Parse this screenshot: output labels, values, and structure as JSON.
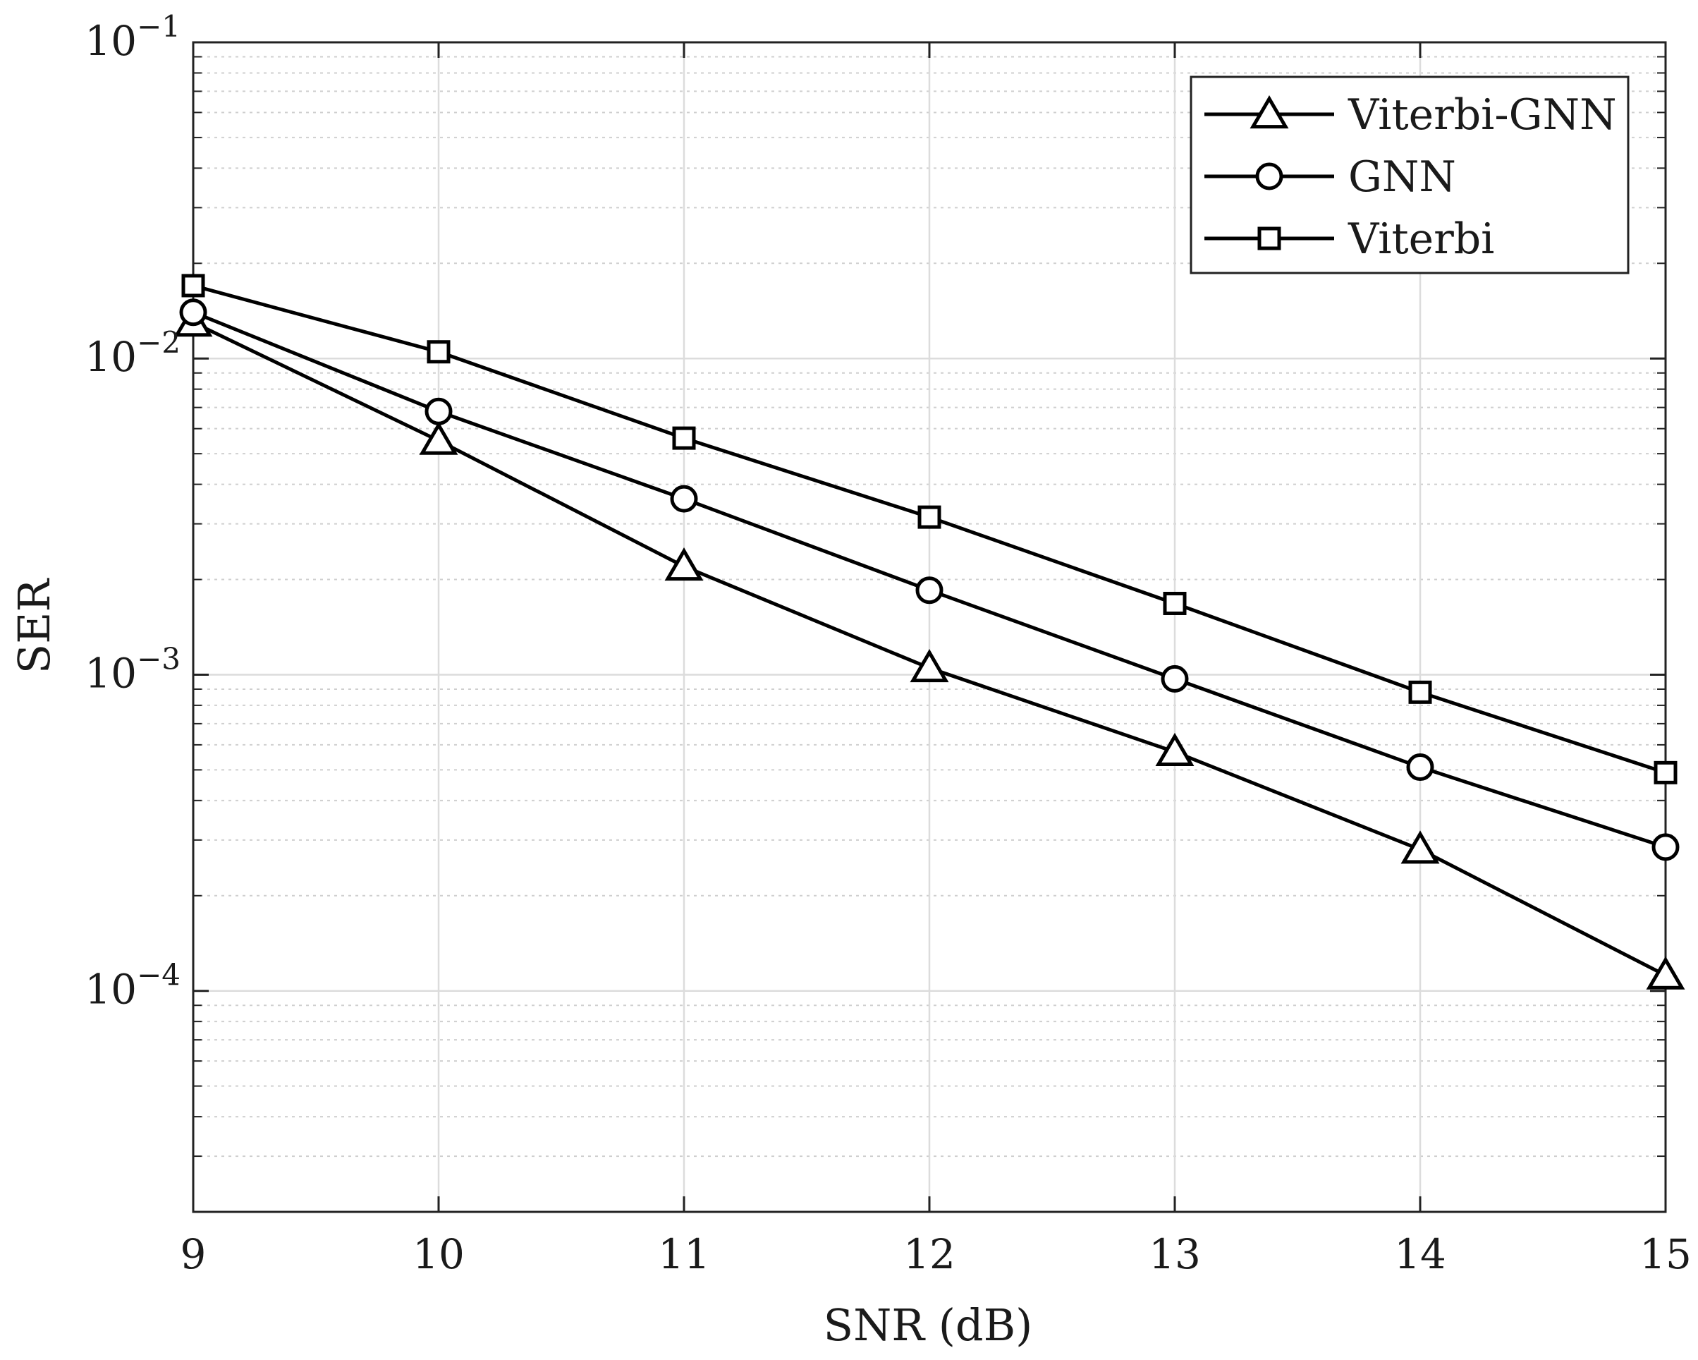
{
  "chart_data": {
    "type": "line",
    "title": "",
    "xlabel": "SNR (dB)",
    "ylabel": "SER",
    "xscale": "linear",
    "yscale": "log",
    "xlim": [
      9,
      15
    ],
    "ylim": [
      2e-05,
      0.1
    ],
    "grid": true,
    "legend_position": "top-right",
    "x": [
      9,
      10,
      11,
      12,
      13,
      14,
      15
    ],
    "xticks": [
      9,
      10,
      11,
      12,
      13,
      14,
      15
    ],
    "xtick_labels": [
      "9",
      "10",
      "11",
      "12",
      "13",
      "14",
      "15"
    ],
    "yticks": [
      {
        "value": 0.1,
        "base": "10",
        "exp": "−1"
      },
      {
        "value": 0.01,
        "base": "10",
        "exp": "−2"
      },
      {
        "value": 0.001,
        "base": "10",
        "exp": "−3"
      },
      {
        "value": 0.0001,
        "base": "10",
        "exp": "−4"
      }
    ],
    "series": [
      {
        "name": "Viterbi-GNN",
        "marker": "triangle",
        "values": [
          0.013,
          0.0055,
          0.0022,
          0.00105,
          0.00057,
          0.00028,
          0.000112
        ]
      },
      {
        "name": "GNN",
        "marker": "circle",
        "values": [
          0.014,
          0.0068,
          0.0036,
          0.00185,
          0.00097,
          0.00051,
          0.000285
        ]
      },
      {
        "name": "Viterbi",
        "marker": "square",
        "values": [
          0.017,
          0.0105,
          0.0056,
          0.00315,
          0.00168,
          0.00088,
          0.00049
        ]
      }
    ]
  }
}
